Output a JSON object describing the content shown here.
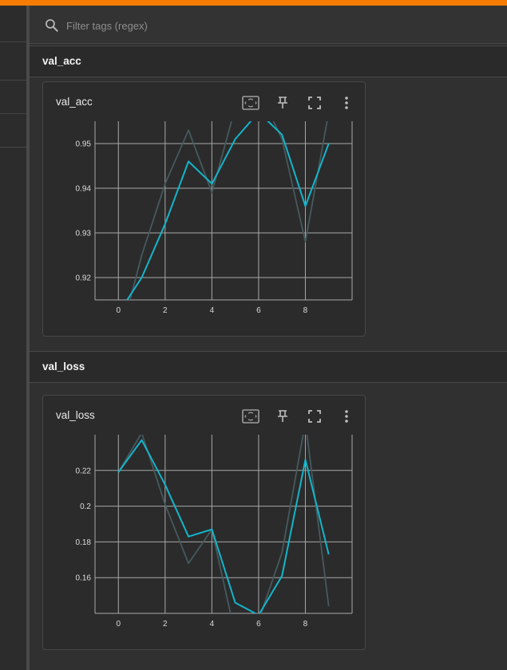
{
  "search": {
    "placeholder": "Filter tags (regex)"
  },
  "groups": [
    {
      "name": "val_acc",
      "card": {
        "title": "val_acc",
        "tools": [
          "fit-domain-icon",
          "pin-icon",
          "fullscreen-icon",
          "more-vert-icon"
        ],
        "chart_data": {
          "type": "line",
          "title": "",
          "xlabel": "",
          "ylabel": "",
          "xlim": [
            -1,
            10
          ],
          "ylim": [
            0.915,
            0.955
          ],
          "x_ticks": [
            0,
            2,
            4,
            6,
            8
          ],
          "y_ticks": [
            0.92,
            0.93,
            0.94,
            0.95
          ],
          "y_tick_labels": [
            "0.92",
            "0.93",
            "0.94",
            "0.95"
          ],
          "grid": true,
          "series": [
            {
              "role": "raw",
              "color": "#455a5e",
              "x": [
                0,
                1,
                2,
                3,
                4,
                5,
                6,
                7,
                8,
                9
              ],
              "y": [
                0.905,
                0.925,
                0.941,
                0.953,
                0.939,
                0.958,
                0.962,
                0.951,
                0.928,
                0.957
              ]
            },
            {
              "role": "smoothed",
              "color": "#12b5cb",
              "x": [
                0,
                1,
                2,
                3,
                4,
                5,
                6,
                7,
                8,
                9
              ],
              "y": [
                0.912,
                0.92,
                0.932,
                0.946,
                0.941,
                0.951,
                0.957,
                0.952,
                0.936,
                0.95
              ]
            }
          ]
        }
      }
    },
    {
      "name": "val_loss",
      "card": {
        "title": "val_loss",
        "tools": [
          "fit-domain-icon",
          "pin-icon",
          "fullscreen-icon",
          "more-vert-icon"
        ],
        "chart_data": {
          "type": "line",
          "title": "",
          "xlabel": "",
          "ylabel": "",
          "xlim": [
            -1,
            10
          ],
          "ylim": [
            0.14,
            0.24
          ],
          "x_ticks": [
            0,
            2,
            4,
            6,
            8
          ],
          "y_ticks": [
            0.16,
            0.18,
            0.2,
            0.22
          ],
          "y_tick_labels": [
            "0.16",
            "0.18",
            "0.2",
            "0.22"
          ],
          "grid": true,
          "series": [
            {
              "role": "raw",
              "color": "#455a5e",
              "x": [
                0,
                1,
                2,
                3,
                4,
                5,
                6,
                7,
                8,
                9
              ],
              "y": [
                0.219,
                0.241,
                0.201,
                0.168,
                0.187,
                0.128,
                0.136,
                0.174,
                0.247,
                0.144
              ]
            },
            {
              "role": "smoothed",
              "color": "#12b5cb",
              "x": [
                0,
                1,
                2,
                3,
                4,
                5,
                6,
                7,
                8,
                9
              ],
              "y": [
                0.219,
                0.237,
                0.212,
                0.183,
                0.187,
                0.146,
                0.139,
                0.161,
                0.226,
                0.173
              ]
            }
          ]
        }
      }
    }
  ]
}
